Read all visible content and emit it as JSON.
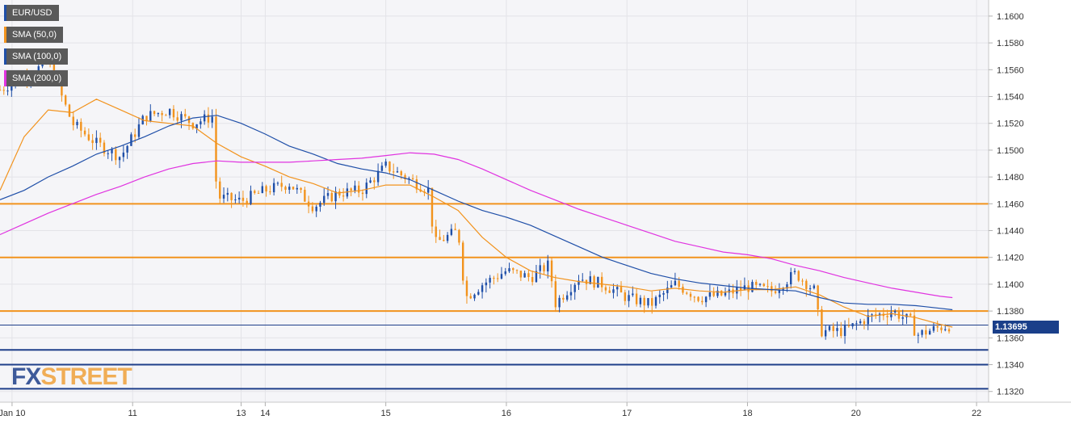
{
  "legend": [
    {
      "label": "EUR/USD",
      "color": "#1f4fa8"
    },
    {
      "label": "SMA (50,0)",
      "color": "#f2931d"
    },
    {
      "label": "SMA (100,0)",
      "color": "#1f4fa8"
    },
    {
      "label": "SMA (200,0)",
      "color": "#e033e0"
    }
  ],
  "price_badge": "1.13695",
  "watermark": {
    "fx": "FX",
    "street": "STREET"
  },
  "colors": {
    "up": "#1f4fa8",
    "down": "#f2931d",
    "sma50": "#f2931d",
    "sma100": "#1f4fa8",
    "sma200": "#e033e0",
    "level": "#f2931d",
    "support": "#1f3f8a"
  },
  "chart_data": {
    "type": "line",
    "title": "",
    "instrument": "EUR/USD",
    "ylim": [
      1.1312,
      1.1612
    ],
    "y_ticks": [
      "1.1600",
      "1.1580",
      "1.1560",
      "1.1540",
      "1.1520",
      "1.1500",
      "1.1480",
      "1.1460",
      "1.1440",
      "1.1420",
      "1.1400",
      "1.1380",
      "1.1360",
      "1.1340",
      "1.1320"
    ],
    "y_tick_values": [
      1.16,
      1.158,
      1.156,
      1.154,
      1.152,
      1.15,
      1.148,
      1.146,
      1.144,
      1.142,
      1.14,
      1.138,
      1.136,
      1.134,
      1.132
    ],
    "xlim": [
      0,
      41
    ],
    "x_ticks": [
      {
        "label": "Jan 10",
        "x": 0.5
      },
      {
        "label": "11",
        "x": 5.5
      },
      {
        "label": "13",
        "x": 10.0
      },
      {
        "label": "14",
        "x": 11.0
      },
      {
        "label": "15",
        "x": 16.0
      },
      {
        "label": "16",
        "x": 21.0
      },
      {
        "label": "17",
        "x": 26.0
      },
      {
        "label": "18",
        "x": 31.0
      },
      {
        "label": "20",
        "x": 35.5
      },
      {
        "label": "22",
        "x": 40.5
      }
    ],
    "price_series": [
      {
        "x": 0,
        "y": 1.1545
      },
      {
        "x": 1,
        "y": 1.1555
      },
      {
        "x": 2,
        "y": 1.1565
      },
      {
        "x": 3,
        "y": 1.152
      },
      {
        "x": 4,
        "y": 1.1505
      },
      {
        "x": 5,
        "y": 1.1495
      },
      {
        "x": 6,
        "y": 1.1525
      },
      {
        "x": 7,
        "y": 1.153
      },
      {
        "x": 8,
        "y": 1.152
      },
      {
        "x": 8.8,
        "y": 1.1525
      },
      {
        "x": 9,
        "y": 1.1465
      },
      {
        "x": 10,
        "y": 1.1462
      },
      {
        "x": 11,
        "y": 1.147
      },
      {
        "x": 12,
        "y": 1.1475
      },
      {
        "x": 13,
        "y": 1.1458
      },
      {
        "x": 14,
        "y": 1.1468
      },
      {
        "x": 15,
        "y": 1.147
      },
      {
        "x": 16,
        "y": 1.1488
      },
      {
        "x": 17,
        "y": 1.1478
      },
      {
        "x": 17.8,
        "y": 1.147
      },
      {
        "x": 18,
        "y": 1.143
      },
      {
        "x": 19,
        "y": 1.144
      },
      {
        "x": 19.3,
        "y": 1.139
      },
      {
        "x": 20,
        "y": 1.14
      },
      {
        "x": 21,
        "y": 1.141
      },
      {
        "x": 22,
        "y": 1.1405
      },
      {
        "x": 22.8,
        "y": 1.1415
      },
      {
        "x": 23,
        "y": 1.1385
      },
      {
        "x": 24,
        "y": 1.1405
      },
      {
        "x": 25,
        "y": 1.14
      },
      {
        "x": 26,
        "y": 1.139
      },
      {
        "x": 27,
        "y": 1.1385
      },
      {
        "x": 28,
        "y": 1.14
      },
      {
        "x": 29,
        "y": 1.139
      },
      {
        "x": 30,
        "y": 1.1392
      },
      {
        "x": 31,
        "y": 1.1398
      },
      {
        "x": 32,
        "y": 1.1395
      },
      {
        "x": 33,
        "y": 1.1408
      },
      {
        "x": 33.8,
        "y": 1.1395
      },
      {
        "x": 34,
        "y": 1.1365
      },
      {
        "x": 35,
        "y": 1.1365
      },
      {
        "x": 36,
        "y": 1.1375
      },
      {
        "x": 37,
        "y": 1.138
      },
      {
        "x": 37.8,
        "y": 1.1372
      },
      {
        "x": 38,
        "y": 1.1362
      },
      {
        "x": 39,
        "y": 1.1368
      },
      {
        "x": 39.5,
        "y": 1.13695
      }
    ],
    "series": [
      {
        "name": "SMA (50,0)",
        "values": [
          {
            "x": 0,
            "y": 1.147
          },
          {
            "x": 1,
            "y": 1.151
          },
          {
            "x": 2,
            "y": 1.153
          },
          {
            "x": 3,
            "y": 1.1528
          },
          {
            "x": 4,
            "y": 1.1538
          },
          {
            "x": 5,
            "y": 1.153
          },
          {
            "x": 6,
            "y": 1.1522
          },
          {
            "x": 7,
            "y": 1.152
          },
          {
            "x": 8,
            "y": 1.1518
          },
          {
            "x": 9,
            "y": 1.1505
          },
          {
            "x": 10,
            "y": 1.1495
          },
          {
            "x": 11,
            "y": 1.1488
          },
          {
            "x": 12,
            "y": 1.148
          },
          {
            "x": 13,
            "y": 1.1475
          },
          {
            "x": 14,
            "y": 1.1468
          },
          {
            "x": 15,
            "y": 1.147
          },
          {
            "x": 16,
            "y": 1.1474
          },
          {
            "x": 17,
            "y": 1.1474
          },
          {
            "x": 18,
            "y": 1.1465
          },
          {
            "x": 19,
            "y": 1.1455
          },
          {
            "x": 20,
            "y": 1.1435
          },
          {
            "x": 21,
            "y": 1.142
          },
          {
            "x": 22,
            "y": 1.141
          },
          {
            "x": 23,
            "y": 1.1405
          },
          {
            "x": 24,
            "y": 1.1402
          },
          {
            "x": 25,
            "y": 1.14
          },
          {
            "x": 26,
            "y": 1.1398
          },
          {
            "x": 27,
            "y": 1.1395
          },
          {
            "x": 28,
            "y": 1.1397
          },
          {
            "x": 29,
            "y": 1.1395
          },
          {
            "x": 30,
            "y": 1.1394
          },
          {
            "x": 31,
            "y": 1.1396
          },
          {
            "x": 32,
            "y": 1.1396
          },
          {
            "x": 33,
            "y": 1.1398
          },
          {
            "x": 34,
            "y": 1.1392
          },
          {
            "x": 35,
            "y": 1.1383
          },
          {
            "x": 36,
            "y": 1.1376
          },
          {
            "x": 37,
            "y": 1.1378
          },
          {
            "x": 38,
            "y": 1.1375
          },
          {
            "x": 39,
            "y": 1.137
          },
          {
            "x": 39.5,
            "y": 1.1368
          }
        ]
      },
      {
        "name": "SMA (100,0)",
        "values": [
          {
            "x": 0,
            "y": 1.1463
          },
          {
            "x": 1,
            "y": 1.147
          },
          {
            "x": 2,
            "y": 1.148
          },
          {
            "x": 3,
            "y": 1.1488
          },
          {
            "x": 4,
            "y": 1.1497
          },
          {
            "x": 5,
            "y": 1.1503
          },
          {
            "x": 6,
            "y": 1.151
          },
          {
            "x": 7,
            "y": 1.1518
          },
          {
            "x": 8,
            "y": 1.1524
          },
          {
            "x": 9,
            "y": 1.1526
          },
          {
            "x": 10,
            "y": 1.152
          },
          {
            "x": 11,
            "y": 1.1512
          },
          {
            "x": 12,
            "y": 1.1503
          },
          {
            "x": 13,
            "y": 1.1497
          },
          {
            "x": 14,
            "y": 1.149
          },
          {
            "x": 15,
            "y": 1.1486
          },
          {
            "x": 16,
            "y": 1.1483
          },
          {
            "x": 17,
            "y": 1.1478
          },
          {
            "x": 18,
            "y": 1.147
          },
          {
            "x": 19,
            "y": 1.1462
          },
          {
            "x": 20,
            "y": 1.1455
          },
          {
            "x": 21,
            "y": 1.145
          },
          {
            "x": 22,
            "y": 1.1444
          },
          {
            "x": 23,
            "y": 1.1436
          },
          {
            "x": 24,
            "y": 1.1428
          },
          {
            "x": 25,
            "y": 1.142
          },
          {
            "x": 26,
            "y": 1.1414
          },
          {
            "x": 27,
            "y": 1.1408
          },
          {
            "x": 28,
            "y": 1.1404
          },
          {
            "x": 29,
            "y": 1.1401
          },
          {
            "x": 30,
            "y": 1.1399
          },
          {
            "x": 31,
            "y": 1.1397
          },
          {
            "x": 32,
            "y": 1.1396
          },
          {
            "x": 33,
            "y": 1.1395
          },
          {
            "x": 34,
            "y": 1.139
          },
          {
            "x": 35,
            "y": 1.1386
          },
          {
            "x": 36,
            "y": 1.1385
          },
          {
            "x": 37,
            "y": 1.1385
          },
          {
            "x": 38,
            "y": 1.1384
          },
          {
            "x": 39,
            "y": 1.1382
          },
          {
            "x": 39.5,
            "y": 1.1381
          }
        ]
      },
      {
        "name": "SMA (200,0)",
        "values": [
          {
            "x": 0,
            "y": 1.1437
          },
          {
            "x": 1,
            "y": 1.1445
          },
          {
            "x": 2,
            "y": 1.1453
          },
          {
            "x": 3,
            "y": 1.146
          },
          {
            "x": 4,
            "y": 1.1467
          },
          {
            "x": 5,
            "y": 1.1473
          },
          {
            "x": 6,
            "y": 1.148
          },
          {
            "x": 7,
            "y": 1.1486
          },
          {
            "x": 8,
            "y": 1.149
          },
          {
            "x": 9,
            "y": 1.1492
          },
          {
            "x": 10,
            "y": 1.1491
          },
          {
            "x": 11,
            "y": 1.1491
          },
          {
            "x": 12,
            "y": 1.1491
          },
          {
            "x": 13,
            "y": 1.1492
          },
          {
            "x": 14,
            "y": 1.1493
          },
          {
            "x": 15,
            "y": 1.1494
          },
          {
            "x": 16,
            "y": 1.1496
          },
          {
            "x": 17,
            "y": 1.1498
          },
          {
            "x": 18,
            "y": 1.1497
          },
          {
            "x": 19,
            "y": 1.1493
          },
          {
            "x": 20,
            "y": 1.1486
          },
          {
            "x": 21,
            "y": 1.1478
          },
          {
            "x": 22,
            "y": 1.147
          },
          {
            "x": 23,
            "y": 1.1463
          },
          {
            "x": 24,
            "y": 1.1456
          },
          {
            "x": 25,
            "y": 1.145
          },
          {
            "x": 26,
            "y": 1.1444
          },
          {
            "x": 27,
            "y": 1.1438
          },
          {
            "x": 28,
            "y": 1.1432
          },
          {
            "x": 29,
            "y": 1.1428
          },
          {
            "x": 30,
            "y": 1.1424
          },
          {
            "x": 31,
            "y": 1.1422
          },
          {
            "x": 32,
            "y": 1.1419
          },
          {
            "x": 33,
            "y": 1.1414
          },
          {
            "x": 34,
            "y": 1.141
          },
          {
            "x": 35,
            "y": 1.1405
          },
          {
            "x": 36,
            "y": 1.1401
          },
          {
            "x": 37,
            "y": 1.1397
          },
          {
            "x": 38,
            "y": 1.1394
          },
          {
            "x": 39,
            "y": 1.1391
          },
          {
            "x": 39.5,
            "y": 1.139
          }
        ]
      }
    ],
    "horizontal_levels": [
      {
        "y": 1.146,
        "style": "resistance",
        "color": "#f2931d"
      },
      {
        "y": 1.142,
        "style": "resistance",
        "color": "#f2931d"
      },
      {
        "y": 1.138,
        "style": "resistance",
        "color": "#f2931d"
      },
      {
        "y": 1.13695,
        "style": "current",
        "color": "#1f3f8a"
      },
      {
        "y": 1.1351,
        "style": "support",
        "color": "#1f3f8a"
      },
      {
        "y": 1.134,
        "style": "support",
        "color": "#1f3f8a"
      },
      {
        "y": 1.1322,
        "style": "support",
        "color": "#1f3f8a"
      }
    ],
    "grid": true,
    "legend_position": "top-left"
  }
}
